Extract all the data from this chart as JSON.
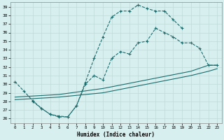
{
  "xlabel": "Humidex (Indice chaleur)",
  "bg_color": "#d7efef",
  "grid_color": "#c0dada",
  "line_color": "#1a6b6b",
  "xlim": [
    -0.5,
    23.5
  ],
  "ylim": [
    25.5,
    39.5
  ],
  "xticks": [
    0,
    1,
    2,
    3,
    4,
    5,
    6,
    7,
    8,
    9,
    10,
    11,
    12,
    13,
    14,
    15,
    16,
    17,
    18,
    19,
    20,
    21,
    22,
    23
  ],
  "yticks": [
    26,
    27,
    28,
    29,
    30,
    31,
    32,
    33,
    34,
    35,
    36,
    37,
    38,
    39
  ],
  "line1_x": [
    0,
    1,
    2,
    3,
    4,
    5,
    6,
    7,
    8,
    9,
    10,
    11,
    12,
    13,
    14,
    15,
    16,
    17,
    18,
    19
  ],
  "line1_y": [
    30.3,
    29.2,
    28.1,
    27.2,
    26.5,
    26.2,
    26.2,
    27.5,
    30.2,
    33.0,
    35.5,
    37.8,
    38.5,
    38.5,
    39.2,
    38.8,
    38.5,
    38.5,
    37.5,
    36.5
  ],
  "line2_x": [
    2,
    3,
    4,
    5,
    6,
    7,
    8,
    9,
    10,
    11,
    12,
    13,
    14,
    15,
    16,
    17,
    18,
    19,
    20,
    21,
    22,
    23
  ],
  "line2_y": [
    28.0,
    27.2,
    26.5,
    26.3,
    26.2,
    27.5,
    30.0,
    31.0,
    30.5,
    33.0,
    33.8,
    33.5,
    34.8,
    35.0,
    36.5,
    36.0,
    35.5,
    34.8,
    34.8,
    34.2,
    32.2,
    32.2
  ],
  "line3_x": [
    0,
    5,
    10,
    15,
    20,
    22,
    23
  ],
  "line3_y": [
    28.5,
    28.8,
    29.5,
    30.5,
    31.5,
    32.2,
    32.2
  ],
  "line4_x": [
    0,
    5,
    10,
    15,
    20,
    22,
    23
  ],
  "line4_y": [
    28.2,
    28.5,
    29.0,
    30.0,
    31.0,
    31.5,
    31.8
  ]
}
